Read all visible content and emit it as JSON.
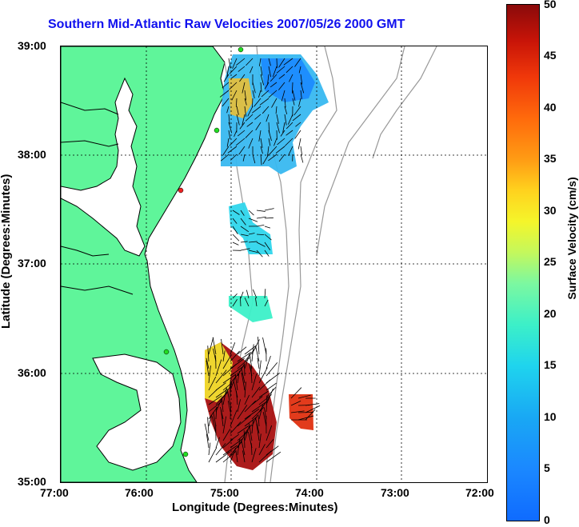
{
  "title": "Southern Mid-Atlantic Raw Velocities 2007/05/26 2000 GMT",
  "xlabel": "Longitude (Degrees:Minutes)",
  "ylabel": "Latitude (Degrees:Minutes)",
  "colorbar": {
    "label": "Surface Velocity (cm/s)",
    "ticks": [
      "50",
      "45",
      "40",
      "35",
      "30",
      "25",
      "20",
      "15",
      "10",
      "5",
      "0"
    ]
  },
  "x_ticks": [
    "77:00",
    "76:00",
    "75:00",
    "74:00",
    "73:00",
    "72:00"
  ],
  "y_ticks": [
    "39:00",
    "38:00",
    "37:00",
    "36:00",
    "35:00"
  ],
  "colors": {
    "land": "#5ff59a",
    "coast": "#000000",
    "isobath": "#999999",
    "grid": "#000000",
    "title": "#1010ee",
    "station": "#22dd22",
    "station_inactive": "#ee2222"
  }
}
